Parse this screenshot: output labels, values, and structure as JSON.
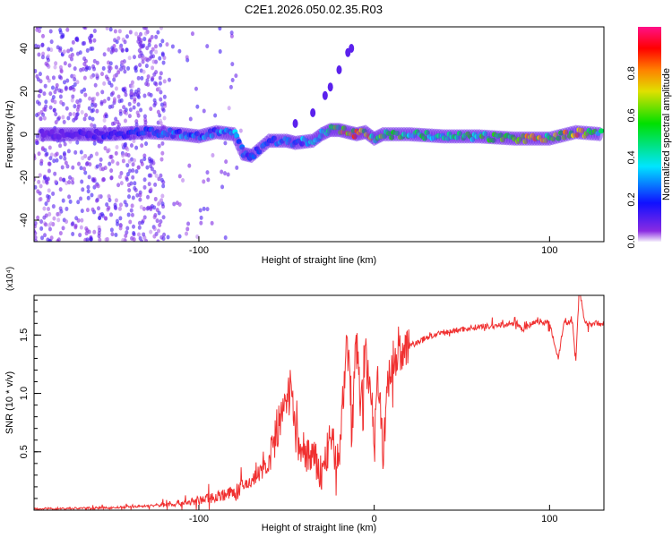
{
  "chart_data": [
    {
      "type": "heatmap",
      "title": "C2E1.2026.050.02.35.R03",
      "xlabel": "Height of straight line (km)",
      "ylabel": "Frequency (Hz)",
      "xlim": [
        -194,
        131
      ],
      "ylim": [
        -50,
        50
      ],
      "xticks": [
        -100,
        100
      ],
      "yticks": [
        -40,
        -20,
        0,
        20,
        40
      ],
      "colorbar": {
        "label": "Normalized spectral amplitude",
        "range": [
          0,
          1
        ],
        "ticks": [
          "0.0",
          "0.2",
          "0.4",
          "0.6",
          "0.8"
        ],
        "colors": [
          "#f4eefc",
          "#8a2be2",
          "#1010ff",
          "#00e5ff",
          "#00e000",
          "#e0e000",
          "#ff8000",
          "#ff0000",
          "#ff1088"
        ]
      },
      "ridge": [
        [
          -190,
          0,
          0.1
        ],
        [
          -170,
          0,
          0.12
        ],
        [
          -150,
          0,
          0.2
        ],
        [
          -130,
          1,
          0.25
        ],
        [
          -110,
          0,
          0.3
        ],
        [
          -100,
          -1,
          0.3
        ],
        [
          -90,
          1,
          0.32
        ],
        [
          -80,
          0,
          0.33
        ],
        [
          -75,
          -9,
          0.3
        ],
        [
          -70,
          -10,
          0.3
        ],
        [
          -60,
          -3,
          0.3
        ],
        [
          -50,
          -3,
          0.3
        ],
        [
          -45,
          -4,
          0.3
        ],
        [
          -35,
          -3,
          0.35
        ],
        [
          -30,
          0,
          0.4
        ],
        [
          -25,
          2,
          0.5
        ],
        [
          -20,
          2,
          0.7
        ],
        [
          -15,
          1,
          0.85
        ],
        [
          -10,
          0,
          0.9
        ],
        [
          -5,
          1,
          0.85
        ],
        [
          0,
          -2,
          0.6
        ],
        [
          5,
          0,
          0.6
        ],
        [
          20,
          0,
          0.55
        ],
        [
          40,
          -1,
          0.5
        ],
        [
          60,
          -1,
          0.55
        ],
        [
          80,
          -2,
          0.6
        ],
        [
          90,
          -2,
          0.8
        ],
        [
          100,
          -2,
          0.65
        ],
        [
          115,
          1,
          0.8
        ],
        [
          130,
          0,
          0.5
        ]
      ],
      "branch": [
        [
          -45,
          5
        ],
        [
          -35,
          10
        ],
        [
          -28,
          18
        ],
        [
          -25,
          22
        ],
        [
          -20,
          30
        ],
        [
          -15,
          38
        ],
        [
          -13,
          40
        ]
      ]
    },
    {
      "type": "line",
      "xlabel": "Height of straight line (km)",
      "ylabel": "SNR (10 * v/v)",
      "yscale_label": "(x10⁴)",
      "xlim": [
        -194,
        131
      ],
      "ylim": [
        0,
        1.84
      ],
      "xticks": [
        -100,
        0,
        100
      ],
      "yticks": [
        "0.5",
        "1.0",
        "1.5"
      ],
      "series": [
        {
          "name": "SNR",
          "color": "#f03030",
          "x": [
            -194,
            -150,
            -125,
            -110,
            -100,
            -90,
            -80,
            -70,
            -60,
            -55,
            -50,
            -47,
            -45,
            -40,
            -35,
            -30,
            -25,
            -20,
            -18,
            -15,
            -13,
            -10,
            -8,
            -5,
            -2,
            0,
            2,
            5,
            8,
            10,
            15,
            20,
            30,
            40,
            50,
            60,
            70,
            80,
            85,
            90,
            95,
            100,
            105,
            108,
            113,
            115,
            117,
            120,
            131
          ],
          "y": [
            0.01,
            0.02,
            0.04,
            0.06,
            0.08,
            0.12,
            0.15,
            0.25,
            0.4,
            0.7,
            0.9,
            1.1,
            0.6,
            0.5,
            0.45,
            0.3,
            0.6,
            0.4,
            0.9,
            1.6,
            0.6,
            1.55,
            0.9,
            1.3,
            1.0,
            0.7,
            1.2,
            0.5,
            1.1,
            1.25,
            1.35,
            1.4,
            1.48,
            1.52,
            1.55,
            1.57,
            1.58,
            1.6,
            1.55,
            1.6,
            1.62,
            1.6,
            1.3,
            1.6,
            1.62,
            1.3,
            1.9,
            1.6,
            1.6
          ]
        }
      ]
    }
  ]
}
